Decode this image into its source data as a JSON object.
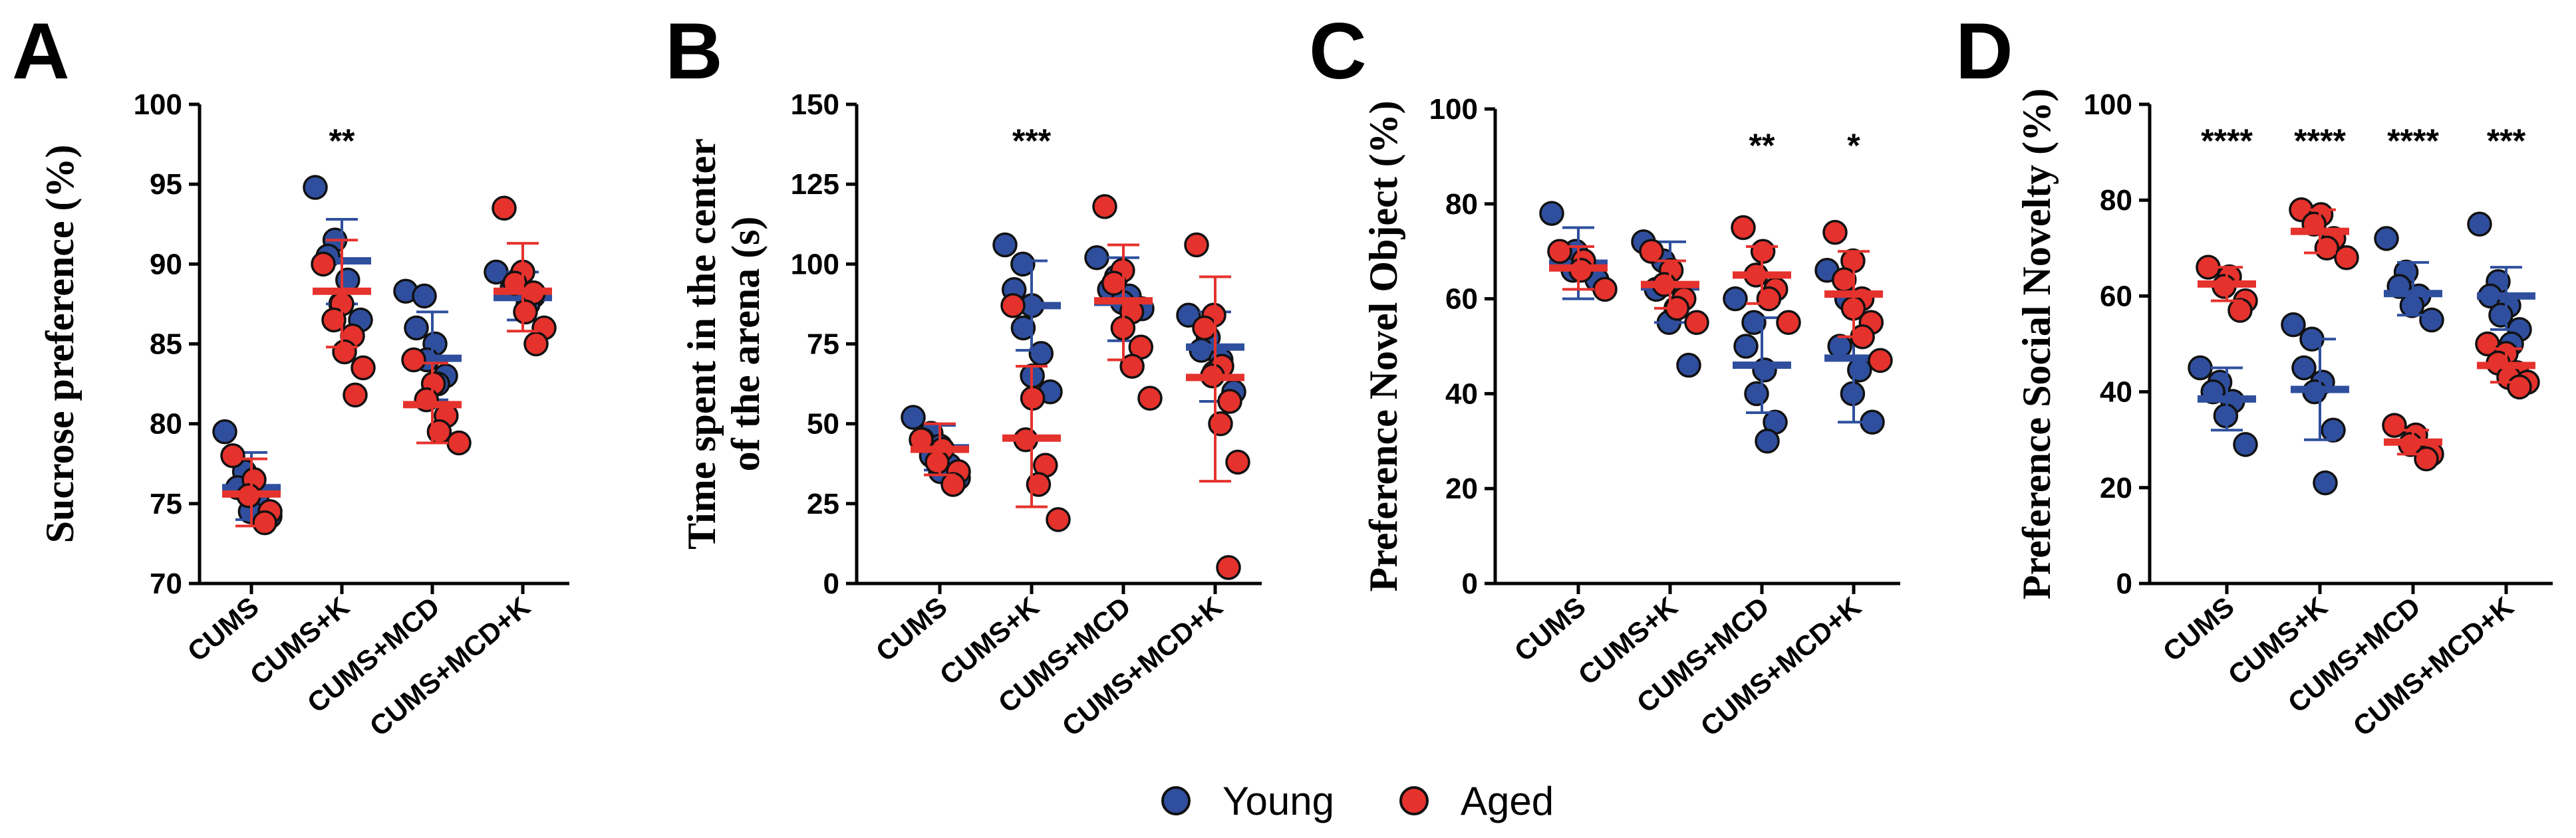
{
  "chart_data": [
    {
      "panel": "A",
      "type": "scatter",
      "ylabel": "Sucrose preference (%)",
      "ylim": [
        70,
        100
      ],
      "yticks": [
        70,
        75,
        80,
        85,
        90,
        95,
        100
      ],
      "categories": [
        "CUMS",
        "CUMS+K",
        "CUMS+MCD",
        "CUMS+MCD+K"
      ],
      "significance": [
        "",
        "**",
        "",
        ""
      ],
      "series": [
        {
          "name": "Young",
          "points": [
            [
              79.5,
              77.0,
              76.0,
              75.5,
              74.5,
              74.2
            ],
            [
              94.8,
              91.5,
              90.5,
              89.0,
              87.5,
              86.5
            ],
            [
              88.3,
              88.0,
              86.0,
              85.0,
              84.0,
              83.0,
              82.5
            ],
            [
              89.5,
              89.0,
              88.5,
              88.0,
              87.5
            ]
          ],
          "mean": [
            76.0,
            90.2,
            84.1,
            87.9
          ],
          "err": [
            [
              74.0,
              78.2
            ],
            [
              87.5,
              92.8
            ],
            [
              81.5,
              87.0
            ],
            [
              86.5,
              89.5
            ]
          ]
        },
        {
          "name": "Aged",
          "points": [
            [
              78.0,
              76.5,
              75.5,
              74.5,
              73.8
            ],
            [
              90.0,
              87.5,
              86.5,
              85.5,
              84.5,
              83.5,
              81.8
            ],
            [
              84.0,
              82.5,
              81.5,
              80.5,
              79.5,
              78.8
            ],
            [
              93.5,
              89.5,
              88.8,
              88.2,
              87.0,
              86.0,
              85.0
            ]
          ],
          "mean": [
            75.6,
            88.3,
            81.2,
            88.3
          ],
          "err": [
            [
              73.6,
              77.8
            ],
            [
              84.8,
              91.5
            ],
            [
              78.8,
              83.8
            ],
            [
              85.8,
              91.3
            ]
          ]
        }
      ]
    },
    {
      "panel": "B",
      "type": "scatter",
      "ylabel": "Time spent in the center of the arena (s)",
      "ylabel_lines": [
        "Time spent in the center",
        "of the arena (s)"
      ],
      "ylim": [
        0,
        150
      ],
      "yticks": [
        0,
        25,
        50,
        75,
        100,
        125,
        150
      ],
      "categories": [
        "CUMS",
        "CUMS+K",
        "CUMS+MCD",
        "CUMS+MCD+K"
      ],
      "significance": [
        "",
        "***",
        "",
        ""
      ],
      "series": [
        {
          "name": "Young",
          "points": [
            [
              52,
              47,
              45,
              43,
              40,
              37,
              35,
              33
            ],
            [
              106,
              100,
              92,
              87,
              80,
              72,
              65,
              60
            ],
            [
              102,
              96,
              92,
              90,
              88,
              86
            ],
            [
              84,
              77,
              73,
              70,
              66,
              60
            ]
          ],
          "mean": [
            42.5,
            87.0,
            88.0,
            74.0
          ],
          "err": [
            [
              35.5,
              49.5
            ],
            [
              73,
              101
            ],
            [
              76,
              102
            ],
            [
              57,
              85
            ]
          ]
        },
        {
          "name": "Aged",
          "points": [
            [
              45,
              42,
              38,
              35,
              31
            ],
            [
              87,
              58,
              45,
              37,
              31,
              20
            ],
            [
              118,
              98,
              94,
              85,
              80,
              74,
              68,
              58
            ],
            [
              106,
              84,
              80,
              68,
              65,
              57,
              50,
              38,
              5
            ]
          ],
          "mean": [
            42.0,
            45.5,
            88.5,
            64.5
          ],
          "err": [
            [
              34,
              50
            ],
            [
              24,
              68
            ],
            [
              70,
              106
            ],
            [
              32,
              96
            ]
          ]
        }
      ]
    },
    {
      "panel": "C",
      "type": "scatter",
      "ylabel": "Preference Novel Object (%)",
      "ylim": [
        0,
        100
      ],
      "yticks": [
        0,
        20,
        40,
        60,
        80,
        100
      ],
      "categories": [
        "CUMS",
        "CUMS+K",
        "CUMS+MCD",
        "CUMS+MCD+K"
      ],
      "significance": [
        "",
        "",
        "**",
        "*"
      ],
      "series": [
        {
          "name": "Young",
          "points": [
            [
              78,
              70,
              66,
              64
            ],
            [
              72,
              68,
              62,
              58,
              55,
              46
            ],
            [
              60,
              55,
              50,
              45,
              40,
              34,
              30
            ],
            [
              66,
              60,
              50,
              45,
              40,
              34
            ]
          ],
          "mean": [
            67.5,
            62.5,
            46.0,
            47.5
          ],
          "err": [
            [
              60,
              75
            ],
            [
              55,
              72
            ],
            [
              36,
              56
            ],
            [
              34,
              60
            ]
          ]
        },
        {
          "name": "Aged",
          "points": [
            [
              70,
              68,
              66,
              62
            ],
            [
              70,
              66,
              63,
              60,
              58,
              55
            ],
            [
              75,
              70,
              65,
              62,
              60,
              55
            ],
            [
              74,
              68,
              64,
              60,
              58,
              55,
              52,
              47
            ]
          ],
          "mean": [
            66.5,
            63.0,
            65.0,
            61.0
          ],
          "err": [
            [
              62,
              71
            ],
            [
              58,
              68
            ],
            [
              59,
              71
            ],
            [
              52,
              70
            ]
          ]
        }
      ]
    },
    {
      "panel": "D",
      "type": "scatter",
      "ylabel": "Preference Social Novelty (%)",
      "ylim": [
        0,
        100
      ],
      "yticks": [
        0,
        20,
        40,
        60,
        80,
        100
      ],
      "categories": [
        "CUMS",
        "CUMS+K",
        "CUMS+MCD",
        "CUMS+MCD+K"
      ],
      "significance": [
        "****",
        "****",
        "****",
        "***"
      ],
      "series": [
        {
          "name": "Young",
          "points": [
            [
              45,
              42,
              40,
              38,
              35,
              29
            ],
            [
              54,
              51,
              45,
              42,
              40,
              32,
              21
            ],
            [
              72,
              65,
              62,
              60,
              58,
              55
            ],
            [
              75,
              63,
              60,
              58,
              56,
              53,
              50
            ]
          ],
          "mean": [
            38.5,
            40.5,
            60.5,
            60.0
          ],
          "err": [
            [
              32,
              45
            ],
            [
              30,
              51
            ],
            [
              56,
              67
            ],
            [
              53,
              66
            ]
          ]
        },
        {
          "name": "Aged",
          "points": [
            [
              66,
              64,
              62,
              59,
              57
            ],
            [
              78,
              77,
              75,
              72,
              70,
              68
            ],
            [
              33,
              31,
              29,
              27,
              26
            ],
            [
              50,
              48,
              46,
              44,
              43,
              42,
              41
            ]
          ],
          "mean": [
            62.5,
            73.5,
            29.5,
            45.5
          ],
          "err": [
            [
              59,
              66
            ],
            [
              69,
              78
            ],
            [
              27,
              32
            ],
            [
              42,
              49
            ]
          ]
        }
      ]
    }
  ],
  "legend": {
    "items": [
      {
        "label": "Young",
        "color": "#2f4f9e"
      },
      {
        "label": "Aged",
        "color": "#e5322d"
      }
    ]
  },
  "colors": {
    "young": "#2f4f9e",
    "aged": "#e5322d"
  }
}
